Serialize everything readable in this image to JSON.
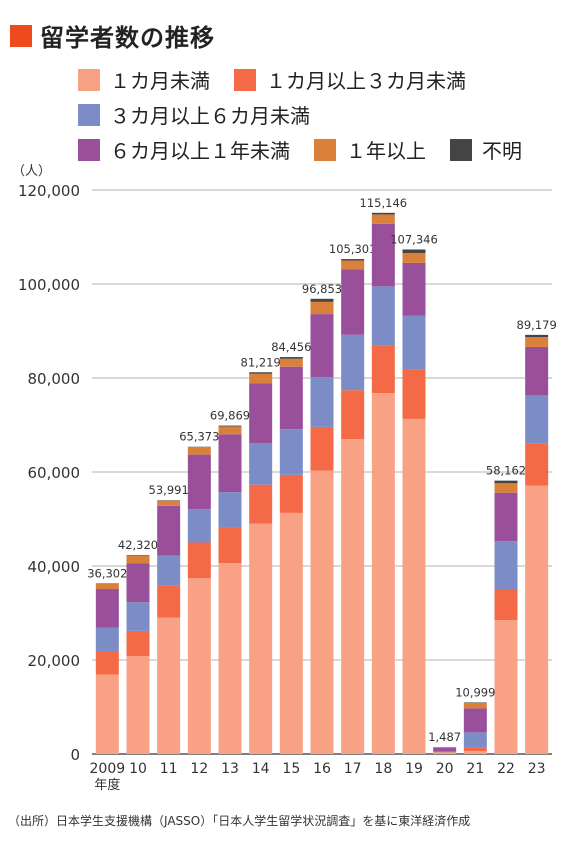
{
  "title": "留学者数の推移",
  "unit_label": "（人）",
  "source": "（出所）日本学生支援機構（JASSO）「日本人学生留学状況調査」を基に東洋経済作成",
  "legend": [
    [
      {
        "label": "１カ月未満",
        "color": "#f9a185"
      },
      {
        "label": "１カ月以上３カ月未満",
        "color": "#f46a46"
      }
    ],
    [
      {
        "label": "３カ月以上６カ月未満",
        "color": "#7b8cc6"
      }
    ],
    [
      {
        "label": "６カ月以上１年未満",
        "color": "#9a4f9b"
      },
      {
        "label": "１年以上",
        "color": "#d9803b"
      },
      {
        "label": "不明",
        "color": "#444444"
      }
    ]
  ],
  "chart_data": {
    "type": "bar",
    "stacked": true,
    "categories": [
      "2009\n年度",
      "10",
      "11",
      "12",
      "13",
      "14",
      "15",
      "16",
      "17",
      "18",
      "19",
      "20",
      "21",
      "22",
      "23"
    ],
    "ylim": [
      0,
      120000
    ],
    "yticks": [
      0,
      20000,
      40000,
      60000,
      80000,
      100000,
      120000
    ],
    "ytick_labels": [
      "0",
      "20,000",
      "40,000",
      "60,000",
      "80,000",
      "100,000",
      "120,000"
    ],
    "grid": true,
    "totals": [
      36302,
      42320,
      53991,
      65373,
      69869,
      81219,
      84456,
      96853,
      105301,
      115146,
      107346,
      1487,
      10999,
      58162,
      89179
    ],
    "total_labels": [
      "36,302",
      "42,320",
      "53,991",
      "65,373",
      "69,869",
      "81,219",
      "84,456",
      "96,853",
      "105,301",
      "115,146",
      "107,346",
      "1,487",
      "10,999",
      "58,162",
      "89,179"
    ],
    "series": [
      {
        "name": "１カ月未満",
        "color": "#f9a185",
        "values": [
          16900,
          20800,
          29000,
          37400,
          40600,
          49000,
          51300,
          60300,
          67000,
          76800,
          71300,
          300,
          600,
          28500,
          57100
        ]
      },
      {
        "name": "１カ月以上３カ月未満",
        "color": "#f46a46",
        "values": [
          4900,
          5400,
          6800,
          7600,
          7500,
          8300,
          8100,
          9300,
          10400,
          10200,
          10600,
          100,
          700,
          6500,
          8900
        ]
      },
      {
        "name": "３カ月以上６カ月未満",
        "color": "#7b8cc6",
        "values": [
          5100,
          6100,
          6400,
          7100,
          7600,
          8800,
          9700,
          10600,
          11800,
          12500,
          11400,
          150,
          3300,
          10300,
          10300
        ]
      },
      {
        "name": "６カ月以上１年未満",
        "color": "#9a4f9b",
        "values": [
          8200,
          8300,
          10600,
          11600,
          12300,
          12800,
          13300,
          13400,
          13900,
          13300,
          11200,
          800,
          5100,
          10300,
          10300
        ]
      },
      {
        "name": "１年以上",
        "color": "#d9803b",
        "values": [
          1100,
          1600,
          1100,
          1600,
          1700,
          2000,
          1700,
          2600,
          1900,
          2000,
          2100,
          130,
          1200,
          2000,
          2100
        ]
      },
      {
        "name": "不明",
        "color": "#444444",
        "values": [
          102,
          120,
          91,
          73,
          169,
          319,
          356,
          653,
          301,
          346,
          746,
          7,
          99,
          562,
          479
        ]
      }
    ]
  }
}
